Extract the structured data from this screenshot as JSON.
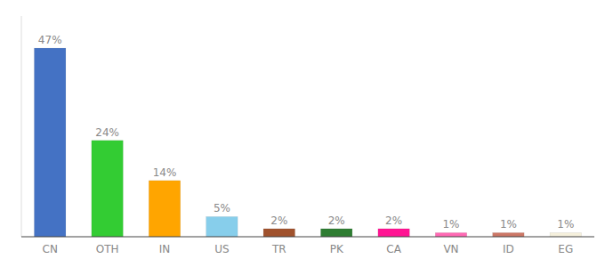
{
  "chart_data": {
    "type": "bar",
    "categories": [
      "CN",
      "OTH",
      "IN",
      "US",
      "TR",
      "PK",
      "CA",
      "VN",
      "ID",
      "EG"
    ],
    "values": [
      47,
      24,
      14,
      5,
      2,
      2,
      2,
      1,
      1,
      1
    ],
    "value_labels": [
      "47%",
      "24%",
      "14%",
      "5%",
      "2%",
      "2%",
      "2%",
      "1%",
      "1%",
      "1%"
    ],
    "colors": [
      "#4472C4",
      "#33CC33",
      "#FFA500",
      "#87CEEB",
      "#A0522D",
      "#2E7D32",
      "#FF1493",
      "#FF69B4",
      "#CC7766",
      "#F5F0DC"
    ],
    "ylim": [
      0,
      55
    ],
    "data_labels": true,
    "tick_labels": "x",
    "grid": false
  }
}
